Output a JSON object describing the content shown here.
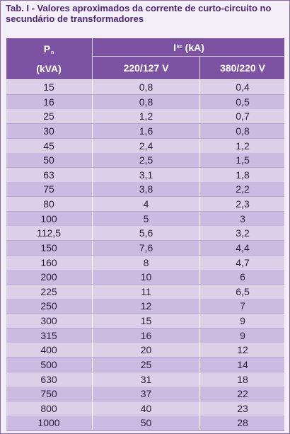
{
  "title": "Tab. I - Valores aproximados da corrente de curto-circuito no secundário de transformadores",
  "header": {
    "col1_symbol": "P",
    "col1_sub": "n",
    "col1_unit": "(kVA)",
    "group_symbol": "I",
    "group_sub": "kc",
    "group_unit": "(kA)",
    "col2": "220/127 V",
    "col3": "380/220 V"
  },
  "rows": [
    [
      "15",
      "0,8",
      "0,4"
    ],
    [
      "16",
      "0,8",
      "0,5"
    ],
    [
      "25",
      "1,2",
      "0,7"
    ],
    [
      "30",
      "1,6",
      "0,8"
    ],
    [
      "45",
      "2,4",
      "1,2"
    ],
    [
      "50",
      "2,5",
      "1,5"
    ],
    [
      "63",
      "3,1",
      "1,8"
    ],
    [
      "75",
      "3,8",
      "2,2"
    ],
    [
      "80",
      "4",
      "2,3"
    ],
    [
      "100",
      "5",
      "3"
    ],
    [
      "112,5",
      "5,6",
      "3,2"
    ],
    [
      "150",
      "7,6",
      "4,4"
    ],
    [
      "160",
      "8",
      "4,7"
    ],
    [
      "200",
      "10",
      "6"
    ],
    [
      "225",
      "11",
      "6,5"
    ],
    [
      "250",
      "12",
      "7"
    ],
    [
      "300",
      "15",
      "9"
    ],
    [
      "315",
      "16",
      "9"
    ],
    [
      "400",
      "20",
      "12"
    ],
    [
      "500",
      "25",
      "14"
    ],
    [
      "630",
      "31",
      "18"
    ],
    [
      "750",
      "37",
      "22"
    ],
    [
      "800",
      "40",
      "23"
    ],
    [
      "1000",
      "50",
      "28"
    ]
  ]
}
